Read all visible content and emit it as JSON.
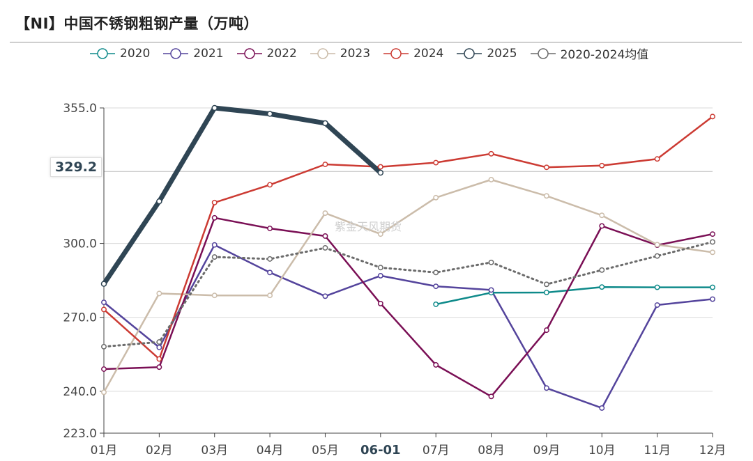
{
  "title": "【NI】中国不锈钢粗钢产量（万吨）",
  "watermark": "紫金天风期货",
  "pointer_label": "329.2",
  "chart_data": {
    "type": "line",
    "categories": [
      "01月",
      "02月",
      "03月",
      "04月",
      "05月",
      "06-01",
      "07月",
      "08月",
      "09月",
      "10月",
      "11月",
      "12月"
    ],
    "highlight_category_index": 5,
    "ylim": [
      223.0,
      355.0
    ],
    "yticks": [
      223.0,
      240.0,
      270.0,
      300.0,
      355.0
    ],
    "ytick_labels": [
      "223.0",
      "240.0",
      "270.0",
      "300.0",
      "355.0"
    ],
    "grid": true,
    "legend_position": "top",
    "series": [
      {
        "name": "2020",
        "color": "#0e8a8a",
        "dashed": false,
        "width": 2.5,
        "values": [
          null,
          null,
          null,
          null,
          null,
          null,
          275.3,
          280.0,
          280.1,
          282.3,
          282.2,
          282.2
        ]
      },
      {
        "name": "2021",
        "color": "#54449c",
        "dashed": false,
        "width": 2.5,
        "values": [
          276.1,
          257.8,
          299.4,
          288.2,
          278.6,
          286.9,
          282.6,
          281.1,
          241.3,
          233.2,
          275.0,
          277.4
        ]
      },
      {
        "name": "2022",
        "color": "#7a0f55",
        "dashed": false,
        "width": 2.5,
        "values": [
          249.0,
          249.8,
          310.4,
          306.1,
          303.0,
          275.6,
          250.7,
          237.9,
          264.8,
          307.1,
          299.3,
          303.8
        ]
      },
      {
        "name": "2023",
        "color": "#cbbcaa",
        "dashed": false,
        "width": 2.5,
        "values": [
          239.6,
          279.7,
          278.9,
          278.9,
          312.3,
          303.8,
          318.6,
          325.9,
          319.3,
          311.4,
          299.5,
          296.4
        ]
      },
      {
        "name": "2024",
        "color": "#cc3b33",
        "dashed": false,
        "width": 2.5,
        "values": [
          273.2,
          253.1,
          316.6,
          323.8,
          332.1,
          331.1,
          332.8,
          336.4,
          330.9,
          331.6,
          334.3,
          351.5
        ]
      },
      {
        "name": "2025",
        "color": "#2f4554",
        "dashed": false,
        "width": 7,
        "values": [
          283.6,
          317.1,
          355.0,
          352.6,
          348.8,
          328.7,
          null,
          null,
          null,
          null,
          null,
          null
        ]
      },
      {
        "name": "2020-2024均值",
        "color": "#6b6b6b",
        "dashed": true,
        "width": 3,
        "values": [
          258.1,
          260.0,
          294.5,
          293.7,
          298.2,
          290.2,
          288.2,
          292.3,
          283.4,
          289.2,
          294.9,
          300.6
        ]
      }
    ]
  }
}
